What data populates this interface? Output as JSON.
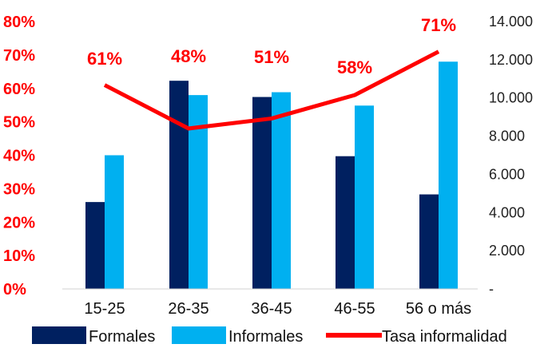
{
  "chart_data": {
    "type": "bar",
    "categories": [
      "15-25",
      "26-35",
      "36-45",
      "46-55",
      "56 o más"
    ],
    "series": [
      {
        "name": "Formales",
        "axis": "right",
        "kind": "bar",
        "color": "#002060",
        "values": [
          4550,
          10900,
          10050,
          6950,
          4950
        ]
      },
      {
        "name": "Informales",
        "axis": "right",
        "kind": "bar",
        "color": "#00b0f0",
        "values": [
          7000,
          10150,
          10300,
          9600,
          11900
        ]
      },
      {
        "name": "Tasa informalidad",
        "axis": "left",
        "kind": "line",
        "color": "#ff0000",
        "values": [
          61,
          48,
          51,
          58,
          71
        ],
        "labels": [
          "61%",
          "48%",
          "51%",
          "58%",
          "71%"
        ]
      }
    ],
    "y_left": {
      "ticks": [
        "0%",
        "10%",
        "20%",
        "30%",
        "40%",
        "50%",
        "60%",
        "70%",
        "80%"
      ],
      "ylim": [
        0,
        80
      ]
    },
    "y_right": {
      "ticks": [
        "-",
        "2.000",
        "4.000",
        "6.000",
        "8.000",
        "10.000",
        "12.000",
        "14.000"
      ],
      "ylim": [
        0,
        14000
      ]
    },
    "grid": false,
    "legend_position": "bottom"
  }
}
